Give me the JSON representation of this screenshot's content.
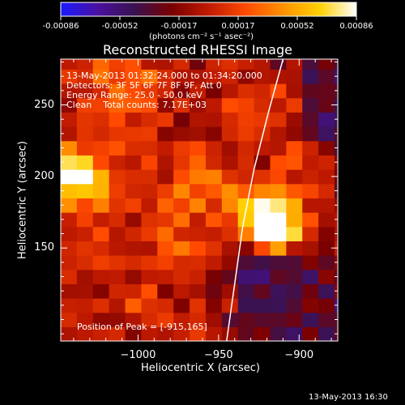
{
  "colors": {
    "background": "#000000",
    "frame": "#ffffff",
    "text": "#ffffff",
    "limb_line": "#ffffff",
    "colormap": [
      "#1b1bff",
      "#4a10a0",
      "#3a1250",
      "#7a0000",
      "#c01a00",
      "#ff4a00",
      "#ff9000",
      "#ffd000",
      "#ffffff"
    ]
  },
  "colorbar": {
    "tick_labels": [
      "-0.00086",
      "-0.00052",
      "-0.00017",
      "0.00017",
      "0.00052",
      "0.00086"
    ],
    "unit_label": "(photons cm⁻² s⁻¹ asec⁻²)",
    "range": [
      -0.00086,
      0.00086
    ]
  },
  "info": {
    "time_range": "13-May-2013 01:32:24.000 to 01:34:20.000",
    "detectors": "Detectors: 3F 5F 6F 7F 8F 9F, Att 0",
    "energy": "Energy Range: 25.0 - 50.0 keV",
    "method_counts": "Clean    Total counts: 7.17E+03",
    "peak": "Position of Peak = [-915,165]"
  },
  "footer": {
    "timestamp": "13-May-2013 16:30"
  },
  "chart_data": {
    "type": "heatmap",
    "title": "Reconstructed RHESSI Image",
    "xlabel": "Heliocentric X (arcsec)",
    "ylabel": "Heliocentric Y (arcsec)",
    "xlim": [
      -1048,
      -876
    ],
    "ylim": [
      85,
      282
    ],
    "xticks": [
      -1000,
      -950,
      -900
    ],
    "xtick_labels": [
      "−1000",
      "−950",
      "−900"
    ],
    "yticks": [
      150,
      200,
      250
    ],
    "ytick_labels": [
      "150",
      "200",
      "250"
    ],
    "peak_position": [
      -915,
      165
    ],
    "limb_curve": [
      [
        -945,
        85
      ],
      [
        -940,
        125
      ],
      [
        -935,
        165
      ],
      [
        -928,
        205
      ],
      [
        -919,
        245
      ],
      [
        -910,
        282
      ]
    ],
    "sources": [
      {
        "x": -915,
        "y": 165,
        "r": 14,
        "level": 1.0
      },
      {
        "x": -920,
        "y": 178,
        "r": 22,
        "level": 0.75
      },
      {
        "x": -1040,
        "y": 202,
        "r": 14,
        "level": 0.9
      },
      {
        "x": -1030,
        "y": 195,
        "r": 22,
        "level": 0.65
      },
      {
        "x": -960,
        "y": 190,
        "r": 30,
        "level": 0.55
      },
      {
        "x": -1010,
        "y": 260,
        "r": 25,
        "level": 0.6
      },
      {
        "x": -930,
        "y": 250,
        "r": 20,
        "level": 0.55
      },
      {
        "x": -980,
        "y": 150,
        "r": 18,
        "level": 0.5
      },
      {
        "x": -1030,
        "y": 150,
        "r": 16,
        "level": 0.45
      },
      {
        "x": -1000,
        "y": 105,
        "r": 14,
        "level": 0.5
      },
      {
        "x": -900,
        "y": 210,
        "r": 16,
        "level": 0.5
      }
    ]
  }
}
